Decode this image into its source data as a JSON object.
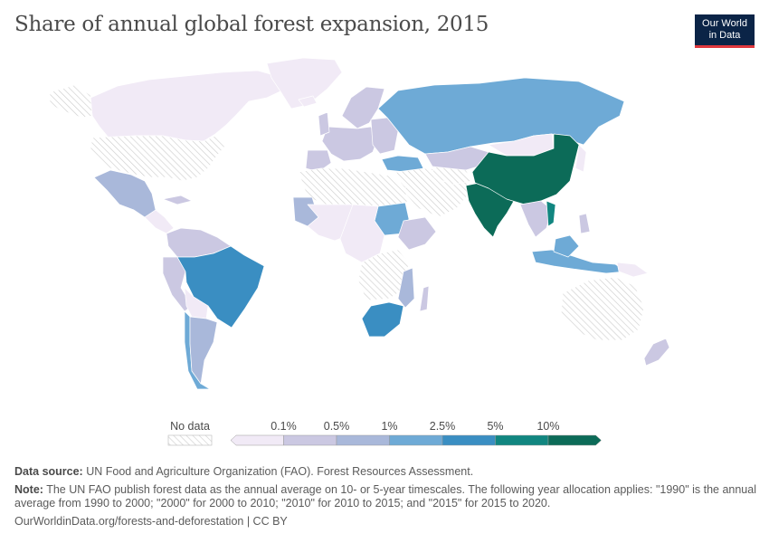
{
  "title": "Share of annual global forest expansion, 2015",
  "logo": {
    "line1": "Our World",
    "line2": "in Data"
  },
  "legend": {
    "no_data_label": "No data",
    "bins": [
      "0.1%",
      "0.5%",
      "1%",
      "2.5%",
      "5%",
      "10%"
    ],
    "colors": [
      "#f1eaf6",
      "#cbc8e2",
      "#a9b8da",
      "#6eaad6",
      "#3a8ec2",
      "#118680",
      "#0c6b58"
    ]
  },
  "map": {
    "water_color": "#ffffff",
    "no_data_pattern": "hatched-gray",
    "regions": [
      {
        "name": "China",
        "bin": 6
      },
      {
        "name": "India",
        "bin": 6
      },
      {
        "name": "Brazil",
        "bin": 4
      },
      {
        "name": "Russia",
        "bin": 3
      },
      {
        "name": "South Africa",
        "bin": 4
      },
      {
        "name": "Sudan",
        "bin": 3
      },
      {
        "name": "Turkey",
        "bin": 3
      },
      {
        "name": "Chile",
        "bin": 3
      },
      {
        "name": "Malaysia and Indonesia",
        "bin": 3
      },
      {
        "name": "Argentina",
        "bin": 2
      },
      {
        "name": "Mexico",
        "bin": 2
      },
      {
        "name": "Mali",
        "bin": 2
      },
      {
        "name": "Kenya",
        "bin": 1
      },
      {
        "name": "Canada",
        "bin": 0
      },
      {
        "name": "United States",
        "bin": 0
      }
    ]
  },
  "footer": {
    "source_label": "Data source:",
    "source_text": "UN Food and Agriculture Organization (FAO). Forest Resources Assessment.",
    "note_label": "Note:",
    "note_text": "The UN FAO publish forest data as the annual average on 10- or 5-year timescales. The following year allocation applies: \"1990\" is the annual average from 1990 to 2000; \"2000\" for 2000 to 2010; \"2010\" for 2010 to 2015; and \"2015\" for 2015 to 2020.",
    "url_text": "OurWorldinData.org/forests-and-deforestation | CC BY"
  }
}
